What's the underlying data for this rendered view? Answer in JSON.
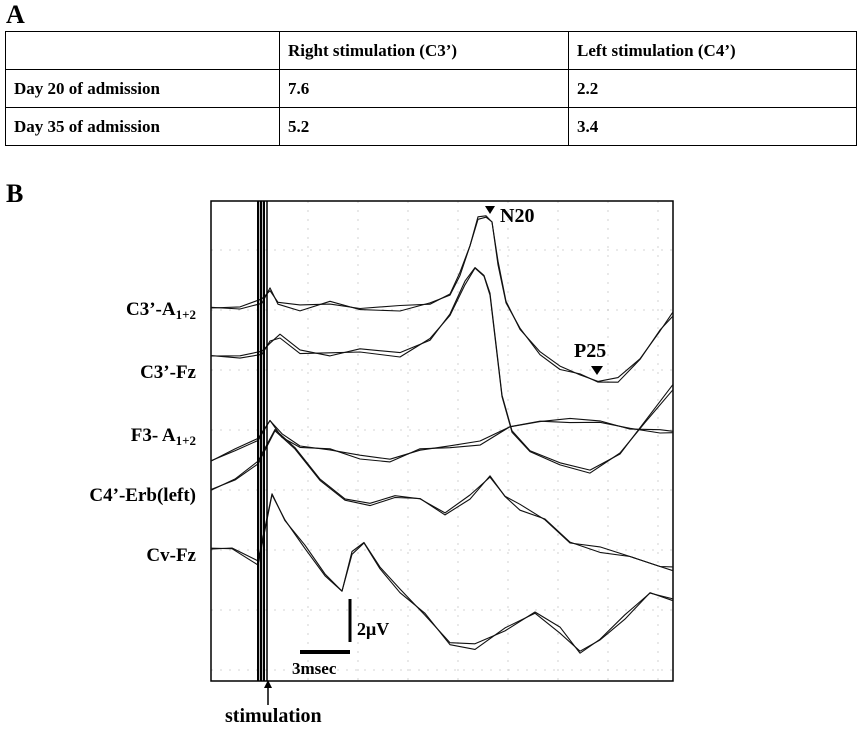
{
  "panel_a": {
    "label": "A",
    "table": {
      "headers": [
        "",
        "Right stimulation (C3’)",
        "Left stimulation (C4’)"
      ],
      "rows": [
        [
          "Day 20 of  admission",
          "7.6",
          "2.2"
        ],
        [
          "Day 35 of admission",
          "5.2",
          "3.4"
        ]
      ]
    }
  },
  "panel_b": {
    "label": "B",
    "traces": [
      {
        "name": "C3’-A",
        "sub": "1+2"
      },
      {
        "name": "C3’-Fz",
        "sub": ""
      },
      {
        "name": "F3- A",
        "sub": "1+2"
      },
      {
        "name": "C4’-Erb(left)",
        "sub": ""
      },
      {
        "name": "Cv-Fz",
        "sub": ""
      }
    ],
    "peaks": {
      "n20": "N20",
      "p25": "P25"
    },
    "scale": {
      "amplitude": "2μV",
      "time": "3msec"
    },
    "stimulation_label": "stimulation"
  }
}
